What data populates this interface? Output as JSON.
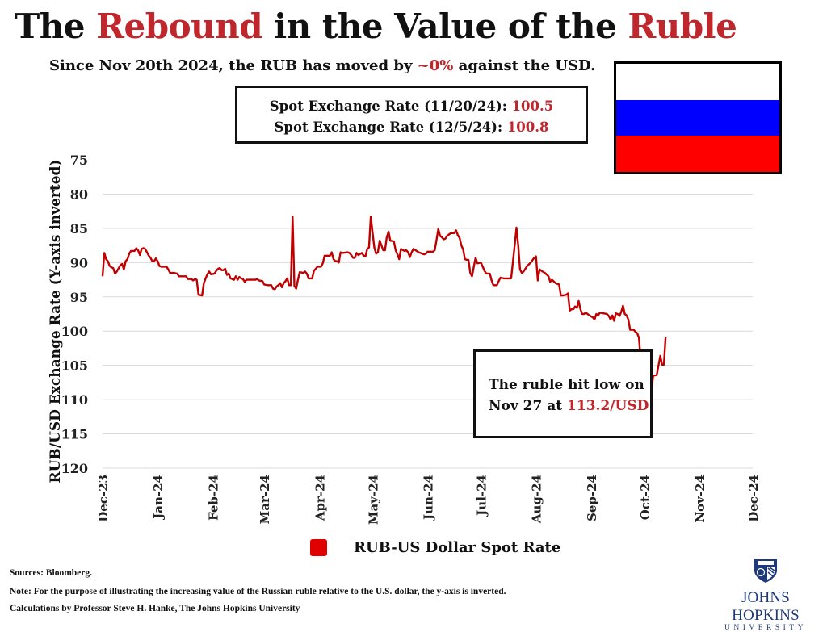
{
  "header": {
    "title_parts": [
      "The ",
      "Rebound",
      " in the Value of the ",
      "Ruble"
    ],
    "subtitle_before": "Since Nov 20th 2024, the RUB has moved by ",
    "subtitle_accent": "~0%",
    "subtitle_after": " against the USD."
  },
  "rate_box": {
    "line1_label": "Spot Exchange Rate (11/20/24): ",
    "line1_value": "100.5",
    "line2_label": "Spot Exchange Rate (12/5/24): ",
    "line2_value": "100.8"
  },
  "flag": {
    "name": "Russia",
    "colors": [
      "#ffffff",
      "#0000ff",
      "#ff0000"
    ]
  },
  "annotation": {
    "line1": "The ruble hit low on",
    "line2_before": "Nov 27 at ",
    "line2_accent": "113.2/USD"
  },
  "legend": {
    "label": "RUB-US Dollar Spot Rate",
    "color": "#e00000"
  },
  "footer": {
    "sources": "Sources: Bloomberg.",
    "note": "Note: For the purpose of illustrating the increasing value of the Russian ruble relative to the U.S. dollar, the y-axis is inverted.",
    "calc": "Calculations by Professor Steve H. Hanke, The Johns Hopkins University"
  },
  "logo": {
    "name": "JOHNS HOPKINS",
    "sub": "UNIVERSITY",
    "color": "#1f3a7a"
  },
  "colors": {
    "accent": "#c0272d",
    "line": "#c00000",
    "grid": "#d9d9d9"
  },
  "chart_data": {
    "type": "line",
    "title": "The Rebound in the Value of the Ruble",
    "xlabel": "",
    "ylabel": "RUB/USD Exchange Rate (Y-axis inverted)",
    "y_inverted": true,
    "ylim": [
      75,
      120
    ],
    "yticks": [
      75,
      80,
      85,
      90,
      95,
      100,
      105,
      110,
      115,
      120
    ],
    "x_unit": "days since 2023-12-01",
    "xlim": [
      0,
      366
    ],
    "xticks": [
      {
        "label": "Dec-23",
        "day": 0
      },
      {
        "label": "Jan-24",
        "day": 31
      },
      {
        "label": "Feb-24",
        "day": 62
      },
      {
        "label": "Mar-24",
        "day": 91
      },
      {
        "label": "Apr-24",
        "day": 122
      },
      {
        "label": "May-24",
        "day": 152
      },
      {
        "label": "Jun-24",
        "day": 183
      },
      {
        "label": "Jul-24",
        "day": 213
      },
      {
        "label": "Aug-24",
        "day": 244
      },
      {
        "label": "Sep-24",
        "day": 275
      },
      {
        "label": "Oct-24",
        "day": 305
      },
      {
        "label": "Nov-24",
        "day": 336
      },
      {
        "label": "Dec-24",
        "day": 366
      }
    ],
    "grid": true,
    "legend_position": "bottom",
    "series": [
      {
        "name": "RUB-US Dollar Spot Rate",
        "points": [
          [
            0,
            92.0
          ],
          [
            1,
            88.6
          ],
          [
            2,
            89.5
          ],
          [
            3,
            89.8
          ],
          [
            4,
            90.5
          ],
          [
            5,
            90.7
          ],
          [
            6,
            90.8
          ],
          [
            7,
            91.6
          ],
          [
            8,
            91.3
          ],
          [
            10,
            90.4
          ],
          [
            11,
            90.2
          ],
          [
            12,
            91.0
          ],
          [
            13,
            89.8
          ],
          [
            14,
            89.5
          ],
          [
            15,
            88.7
          ],
          [
            16,
            88.3
          ],
          [
            17,
            88.3
          ],
          [
            18,
            88.3
          ],
          [
            19,
            87.9
          ],
          [
            20,
            88.2
          ],
          [
            21,
            88.9
          ],
          [
            22,
            88.0
          ],
          [
            23,
            87.9
          ],
          [
            24,
            88.0
          ],
          [
            25,
            88.5
          ],
          [
            26,
            89.0
          ],
          [
            27,
            89.3
          ],
          [
            28,
            89.8
          ],
          [
            29,
            89.8
          ],
          [
            30,
            89.4
          ],
          [
            31,
            89.8
          ],
          [
            32,
            90.5
          ],
          [
            33,
            90.6
          ],
          [
            36,
            90.6
          ],
          [
            37,
            91.0
          ],
          [
            38,
            91.5
          ],
          [
            40,
            91.5
          ],
          [
            42,
            91.6
          ],
          [
            43,
            92.0
          ],
          [
            47,
            92.0
          ],
          [
            48,
            92.4
          ],
          [
            50,
            92.4
          ],
          [
            51,
            92.6
          ],
          [
            52,
            92.4
          ],
          [
            53,
            92.5
          ],
          [
            54,
            94.7
          ],
          [
            56,
            94.8
          ],
          [
            57,
            93.0
          ],
          [
            58,
            92.3
          ],
          [
            59,
            91.7
          ],
          [
            60,
            91.3
          ],
          [
            61,
            91.7
          ],
          [
            63,
            91.6
          ],
          [
            64,
            91.2
          ],
          [
            65,
            90.9
          ],
          [
            66,
            90.8
          ],
          [
            67,
            91.1
          ],
          [
            68,
            91.1
          ],
          [
            69,
            90.9
          ],
          [
            70,
            91.8
          ],
          [
            71,
            91.6
          ],
          [
            72,
            92.3
          ],
          [
            74,
            92.5
          ],
          [
            75,
            92.0
          ],
          [
            76,
            92.5
          ],
          [
            77,
            92.1
          ],
          [
            78,
            92.3
          ],
          [
            79,
            92.4
          ],
          [
            80,
            92.8
          ],
          [
            81,
            92.5
          ],
          [
            83,
            92.5
          ],
          [
            86,
            92.5
          ],
          [
            87,
            92.4
          ],
          [
            88,
            92.6
          ],
          [
            90,
            92.7
          ],
          [
            91,
            93.2
          ],
          [
            93,
            93.3
          ],
          [
            95,
            93.3
          ],
          [
            96,
            93.8
          ],
          [
            97,
            93.9
          ],
          [
            98,
            93.5
          ],
          [
            99,
            93.3
          ],
          [
            100,
            93.0
          ],
          [
            101,
            93.6
          ],
          [
            102,
            93.0
          ],
          [
            103,
            92.7
          ],
          [
            104,
            92.3
          ],
          [
            105,
            93.3
          ],
          [
            106,
            93.3
          ],
          [
            107,
            83.3
          ],
          [
            108,
            93.4
          ],
          [
            109,
            93.8
          ],
          [
            110,
            92.5
          ],
          [
            111,
            91.4
          ],
          [
            113,
            91.5
          ],
          [
            114,
            91.3
          ],
          [
            115,
            91.6
          ],
          [
            116,
            92.3
          ],
          [
            118,
            92.3
          ],
          [
            119,
            91.2
          ],
          [
            120,
            90.9
          ],
          [
            121,
            90.6
          ],
          [
            123,
            90.6
          ],
          [
            124,
            90.1
          ],
          [
            125,
            89.0
          ],
          [
            126,
            89.0
          ],
          [
            128,
            89.0
          ],
          [
            129,
            88.5
          ],
          [
            130,
            89.5
          ],
          [
            131,
            89.8
          ],
          [
            132,
            89.8
          ],
          [
            133,
            90.0
          ],
          [
            134,
            88.5
          ],
          [
            135,
            88.6
          ],
          [
            138,
            88.5
          ],
          [
            139,
            88.6
          ],
          [
            140,
            88.9
          ],
          [
            141,
            89.3
          ],
          [
            142,
            89.3
          ],
          [
            143,
            88.6
          ],
          [
            144,
            88.9
          ],
          [
            146,
            88.6
          ],
          [
            147,
            89.0
          ],
          [
            148,
            89.1
          ],
          [
            149,
            88.0
          ],
          [
            150,
            87.8
          ],
          [
            151,
            83.3
          ],
          [
            153,
            87.8
          ],
          [
            154,
            88.7
          ],
          [
            155,
            88.5
          ],
          [
            156,
            86.8
          ],
          [
            157,
            87.5
          ],
          [
            158,
            88.2
          ],
          [
            159,
            88.2
          ],
          [
            160,
            86.3
          ],
          [
            161,
            85.5
          ],
          [
            162,
            86.8
          ],
          [
            164,
            86.9
          ],
          [
            165,
            88.2
          ],
          [
            166,
            88.8
          ],
          [
            167,
            89.5
          ],
          [
            168,
            88.0
          ],
          [
            170,
            88.3
          ],
          [
            171,
            88.2
          ],
          [
            172,
            88.5
          ],
          [
            173,
            89.2
          ],
          [
            174,
            88.5
          ],
          [
            175,
            88.0
          ],
          [
            178,
            88.5
          ],
          [
            181,
            88.8
          ],
          [
            182,
            88.7
          ],
          [
            183,
            88.4
          ],
          [
            184,
            88.4
          ],
          [
            186,
            88.4
          ],
          [
            187,
            88.2
          ],
          [
            188,
            86.7
          ],
          [
            189,
            85.1
          ],
          [
            190,
            86.1
          ],
          [
            191,
            86.3
          ],
          [
            192,
            86.6
          ],
          [
            193,
            86.5
          ],
          [
            194,
            86.1
          ],
          [
            196,
            85.7
          ],
          [
            198,
            85.7
          ],
          [
            199,
            85.3
          ],
          [
            200,
            86.0
          ],
          [
            201,
            86.4
          ],
          [
            202,
            87.5
          ],
          [
            203,
            88.1
          ],
          [
            204,
            89.5
          ],
          [
            205,
            89.6
          ],
          [
            206,
            89.6
          ],
          [
            207,
            91.5
          ],
          [
            208,
            92.0
          ],
          [
            209,
            90.6
          ],
          [
            210,
            89.3
          ],
          [
            211,
            90.1
          ],
          [
            213,
            90.0
          ],
          [
            214,
            90.6
          ],
          [
            215,
            91.2
          ],
          [
            216,
            91.6
          ],
          [
            218,
            91.6
          ],
          [
            219,
            92.6
          ],
          [
            220,
            93.3
          ],
          [
            222,
            93.3
          ],
          [
            223,
            92.7
          ],
          [
            224,
            92.2
          ],
          [
            226,
            92.3
          ],
          [
            230,
            92.3
          ],
          [
            232,
            87.5
          ],
          [
            233,
            84.9
          ],
          [
            234,
            87.5
          ],
          [
            235,
            91.0
          ],
          [
            236,
            91.5
          ],
          [
            237,
            91.3
          ],
          [
            239,
            90.5
          ],
          [
            241,
            90.0
          ],
          [
            243,
            89.3
          ],
          [
            244,
            89.1
          ],
          [
            245,
            92.6
          ],
          [
            246,
            91.0
          ],
          [
            247,
            91.2
          ],
          [
            249,
            91.5
          ],
          [
            251,
            92.0
          ],
          [
            252,
            92.8
          ],
          [
            253,
            92.5
          ],
          [
            255,
            93.0
          ],
          [
            257,
            93.2
          ],
          [
            258,
            94.8
          ],
          [
            259,
            94.8
          ],
          [
            261,
            94.7
          ],
          [
            262,
            94.5
          ],
          [
            263,
            97.0
          ],
          [
            264,
            96.8
          ],
          [
            265,
            96.8
          ],
          [
            266,
            96.4
          ],
          [
            267,
            96.6
          ],
          [
            268,
            95.6
          ],
          [
            269,
            96.8
          ],
          [
            270,
            97.5
          ],
          [
            271,
            97.5
          ],
          [
            272,
            97.3
          ],
          [
            274,
            97.7
          ],
          [
            276,
            98.0
          ],
          [
            277,
            98.3
          ],
          [
            278,
            97.5
          ],
          [
            279,
            97.7
          ],
          [
            280,
            97.3
          ],
          [
            282,
            97.4
          ],
          [
            284,
            97.5
          ],
          [
            285,
            97.8
          ],
          [
            286,
            98.3
          ],
          [
            287,
            97.7
          ],
          [
            288,
            98.5
          ],
          [
            289,
            97.4
          ],
          [
            290,
            97.5
          ],
          [
            291,
            97.8
          ],
          [
            292,
            97.2
          ],
          [
            293,
            96.3
          ],
          [
            294,
            97.5
          ],
          [
            295,
            97.7
          ],
          [
            296,
            98.3
          ],
          [
            297,
            99.8
          ],
          [
            299,
            99.8
          ],
          [
            300,
            100.1
          ],
          [
            301,
            100.3
          ],
          [
            302,
            101.0
          ],
          [
            303,
            104.4
          ],
          [
            304,
            104.5
          ],
          [
            305,
            104.0
          ],
          [
            306,
            104.5
          ],
          [
            307,
            106.5
          ],
          [
            308,
            113.2
          ],
          [
            309,
            108.5
          ],
          [
            310,
            106.5
          ],
          [
            312,
            106.4
          ],
          [
            313,
            105.0
          ],
          [
            314,
            103.6
          ],
          [
            315,
            104.9
          ],
          [
            316,
            104.9
          ],
          [
            317,
            100.8
          ]
        ]
      }
    ],
    "annotations": [
      {
        "text": "The ruble hit low on Nov 27 at 113.2/USD",
        "date": "Nov 27",
        "value": 113.2
      },
      {
        "text": "Spot Exchange Rate (11/20/24): 100.5",
        "date": "11/20/24",
        "value": 100.5
      },
      {
        "text": "Spot Exchange Rate (12/5/24): 100.8",
        "date": "12/5/24",
        "value": 100.8
      }
    ]
  }
}
